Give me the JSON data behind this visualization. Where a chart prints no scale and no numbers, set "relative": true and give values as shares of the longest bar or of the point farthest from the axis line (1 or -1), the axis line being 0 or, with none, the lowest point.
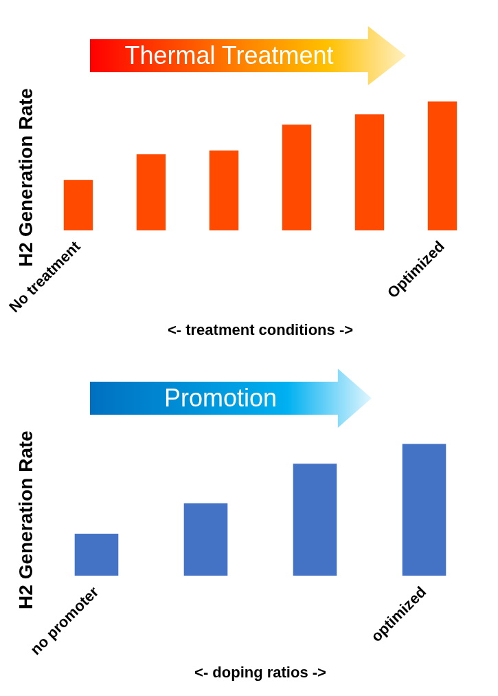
{
  "chart_data": [
    {
      "type": "bar",
      "title": "Thermal Treatment",
      "ylabel": "H2 Generation Rate",
      "xlabel": "<- treatment conditions ->",
      "relative": true,
      "categories": [
        "No treatment",
        null,
        null,
        null,
        null,
        "Optimized"
      ],
      "values": [
        0.39,
        0.59,
        0.62,
        0.82,
        0.9,
        1
      ],
      "color": "#ff4a00"
    },
    {
      "type": "bar",
      "title": "Promotion",
      "ylabel": "H2 Generation Rate",
      "xlabel": "<- doping ratios ->",
      "relative": true,
      "categories": [
        "no promoter",
        null,
        null,
        "optimized"
      ],
      "values": [
        0.32,
        0.55,
        0.85,
        1
      ],
      "color": "#4472c4"
    }
  ]
}
